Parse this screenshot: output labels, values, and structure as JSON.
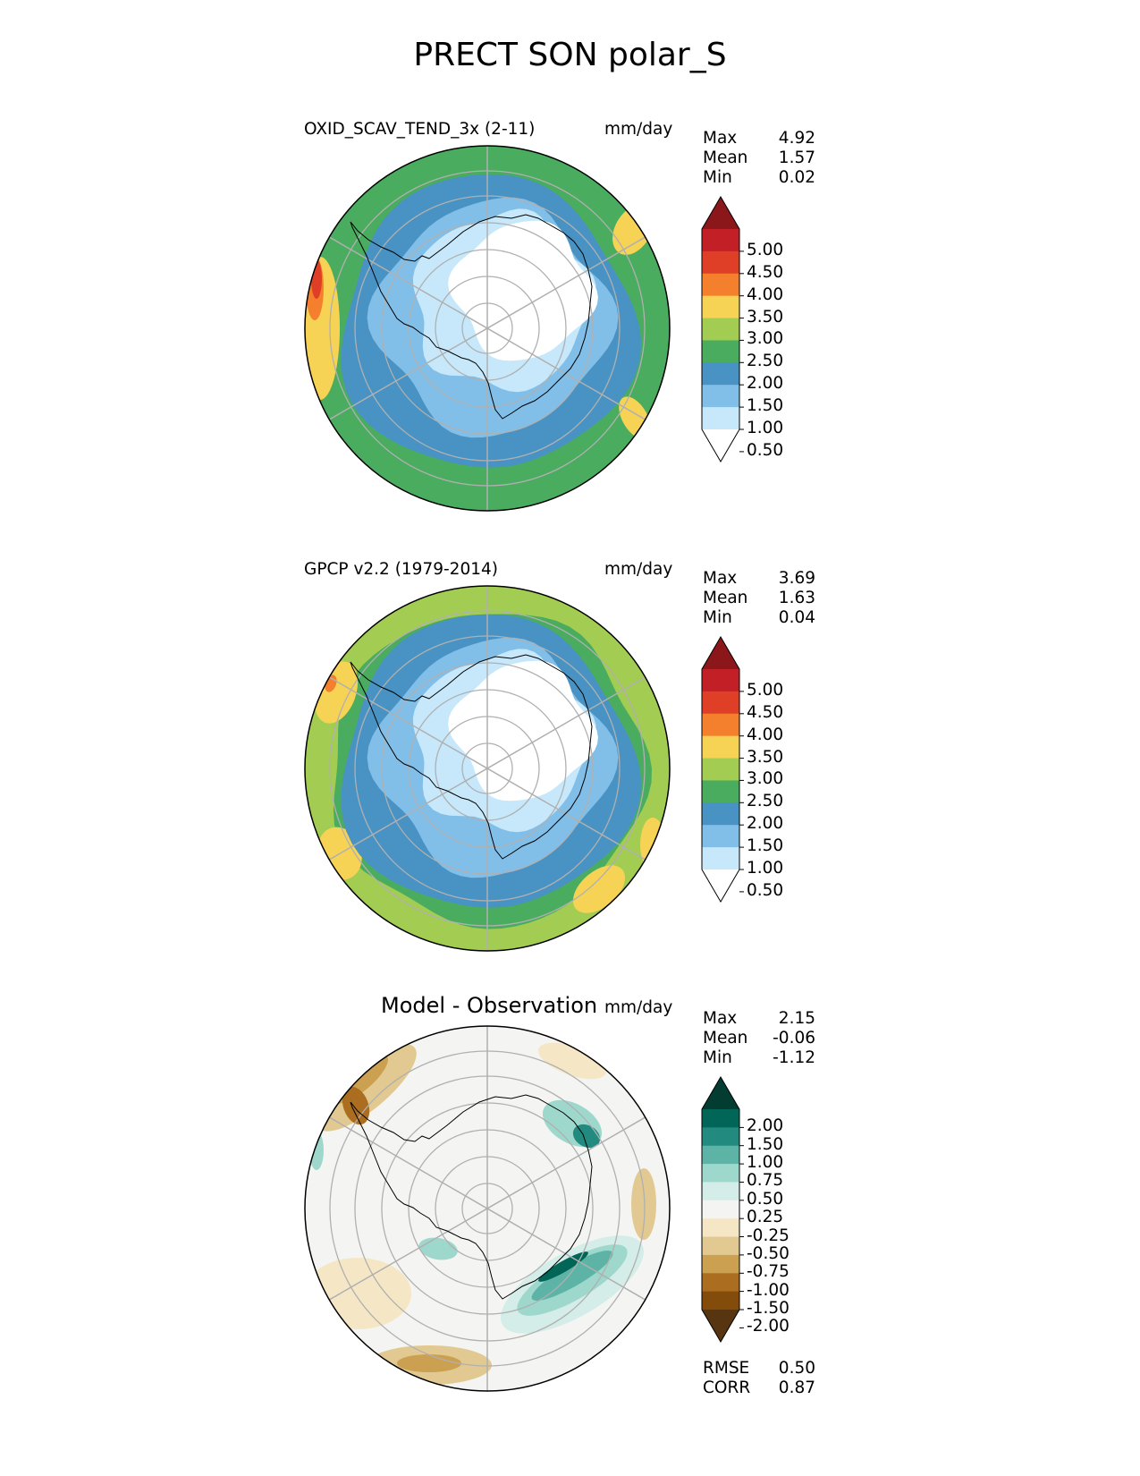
{
  "figure": {
    "title": "PRECT SON polar_S",
    "colors": {
      "precip_levels": [
        "#ffffff",
        "#c6e8fa",
        "#82bfe8",
        "#4893c4",
        "#4aac5e",
        "#a3cc52",
        "#f7d355",
        "#f4802e",
        "#e03f27",
        "#c22026",
        "#8b171a"
      ],
      "diff_levels": [
        "#573510",
        "#834c0b",
        "#ab6e20",
        "#cba050",
        "#e2c991",
        "#f5e7c6",
        "#f4f4f2",
        "#d4ede8",
        "#9ed8cc",
        "#5db4a6",
        "#238a80",
        "#016657",
        "#033d31"
      ]
    }
  },
  "chart_data": [
    {
      "type": "heatmap",
      "projection": "south-polar-stereographic",
      "title": "OXID_SCAV_TEND_3x (2-11)",
      "units": "mm/day",
      "stats": [
        {
          "label": "Max",
          "value": "4.92"
        },
        {
          "label": "Mean",
          "value": "1.57"
        },
        {
          "label": "Min",
          "value": "0.02"
        }
      ],
      "colorbar": {
        "ticks": [
          "5.00",
          "4.50",
          "4.00",
          "3.50",
          "3.00",
          "2.50",
          "2.00",
          "1.50",
          "1.00",
          "0.50"
        ],
        "extend": "both"
      },
      "icon": "antarctica-coastline",
      "grid": true
    },
    {
      "type": "heatmap",
      "projection": "south-polar-stereographic",
      "title": "GPCP v2.2 (1979-2014)",
      "units": "mm/day",
      "stats": [
        {
          "label": "Max",
          "value": "3.69"
        },
        {
          "label": "Mean",
          "value": "1.63"
        },
        {
          "label": "Min",
          "value": "0.04"
        }
      ],
      "colorbar": {
        "ticks": [
          "5.00",
          "4.50",
          "4.00",
          "3.50",
          "3.00",
          "2.50",
          "2.00",
          "1.50",
          "1.00",
          "0.50"
        ],
        "extend": "both"
      },
      "icon": "antarctica-coastline",
      "grid": true
    },
    {
      "type": "heatmap",
      "projection": "south-polar-stereographic",
      "title": "Model - Observation",
      "units": "mm/day",
      "stats": [
        {
          "label": "Max",
          "value": "2.15"
        },
        {
          "label": "Mean",
          "value": "-0.06"
        },
        {
          "label": "Min",
          "value": "-1.12"
        }
      ],
      "colorbar": {
        "ticks": [
          "2.00",
          "1.50",
          "1.00",
          "0.75",
          "0.50",
          "0.25",
          "-0.25",
          "-0.50",
          "-0.75",
          "-1.00",
          "-1.50",
          "-2.00"
        ],
        "extend": "both"
      },
      "metrics": [
        {
          "label": "RMSE",
          "value": "0.50"
        },
        {
          "label": "CORR",
          "value": "0.87"
        }
      ],
      "icon": "antarctica-coastline",
      "grid": true
    }
  ]
}
